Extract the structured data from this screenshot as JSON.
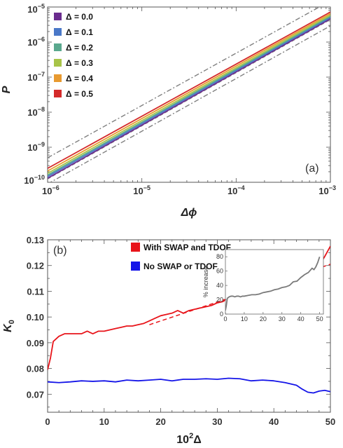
{
  "chart_data": [
    {
      "type": "line",
      "panel_label": "(a)",
      "xlabel": "Δϕ",
      "ylabel": "P",
      "xscale": "log",
      "yscale": "log",
      "xlim": [
        1e-06,
        0.001
      ],
      "ylim": [
        1e-10,
        1e-05
      ],
      "x_ticks": [
        {
          "value": 1e-06,
          "base": "10",
          "exp": "−6"
        },
        {
          "value": 1e-05,
          "base": "10",
          "exp": "−5"
        },
        {
          "value": 0.0001,
          "base": "10",
          "exp": "−4"
        },
        {
          "value": 0.001,
          "base": "10",
          "exp": "−3"
        }
      ],
      "y_ticks": [
        {
          "value": 1e-10,
          "base": "10",
          "exp": "−10"
        },
        {
          "value": 1e-09,
          "base": "10",
          "exp": "−9"
        },
        {
          "value": 1e-08,
          "base": "10",
          "exp": "−8"
        },
        {
          "value": 1e-07,
          "base": "10",
          "exp": "−7"
        },
        {
          "value": 1e-06,
          "base": "10",
          "exp": "−6"
        },
        {
          "value": 1e-05,
          "base": "10",
          "exp": "−5"
        }
      ],
      "legend_position": "top-left",
      "series": [
        {
          "name": "Δ = 0.0",
          "color": "#6a2c8e",
          "x": [
            1e-06,
            0.001
          ],
          "y": [
            1.3e-10,
            4.6e-06
          ]
        },
        {
          "name": "Δ = 0.1",
          "color": "#4a78c8",
          "x": [
            1e-06,
            0.001
          ],
          "y": [
            1.45e-10,
            5e-06
          ]
        },
        {
          "name": "Δ = 0.2",
          "color": "#5aa88e",
          "x": [
            1e-06,
            0.001
          ],
          "y": [
            1.6e-10,
            5.4e-06
          ]
        },
        {
          "name": "Δ = 0.3",
          "color": "#a8c448",
          "x": [
            1e-06,
            0.001
          ],
          "y": [
            1.8e-10,
            5.9e-06
          ]
        },
        {
          "name": "Δ = 0.4",
          "color": "#e89a30",
          "x": [
            1e-06,
            0.001
          ],
          "y": [
            2.1e-10,
            6.5e-06
          ]
        },
        {
          "name": "Δ = 0.5",
          "color": "#d42a2a",
          "x": [
            1e-06,
            0.001
          ],
          "y": [
            2.5e-10,
            7.2e-06
          ]
        }
      ],
      "reference_lines": [
        {
          "style": "dash-dot",
          "color": "#808080",
          "x": [
            1e-06,
            0.001
          ],
          "y": [
            5e-10,
            1.5e-05
          ]
        },
        {
          "style": "dash-dot",
          "color": "#808080",
          "x": [
            1e-06,
            0.001
          ],
          "y": [
            9e-11,
            2.9e-06
          ]
        },
        {
          "style": "dashed",
          "color": "#808080",
          "x": [
            1e-06,
            0.001
          ],
          "y": [
            1.25e-10,
            4.4e-06
          ]
        }
      ]
    },
    {
      "type": "line",
      "panel_label": "(b)",
      "xlabel_base": "10",
      "xlabel_exp": "2",
      "xlabel_rest": "Δ",
      "ylabel_base": "K",
      "ylabel_sub": "0",
      "xlim": [
        0,
        50
      ],
      "ylim": [
        0.063,
        0.13
      ],
      "x_ticks": [
        0,
        10,
        20,
        30,
        40,
        50
      ],
      "y_ticks": [
        0.07,
        0.08,
        0.09,
        0.1,
        0.11,
        0.12,
        0.13
      ],
      "y_tick_labels": [
        "0.07",
        "0.08",
        "0.09",
        "0.10",
        "0.11",
        "0.12",
        "0.13"
      ],
      "legend_position": "top-center",
      "series": [
        {
          "name": "With SWAP and TDOF",
          "color": "#e8141a",
          "x": [
            0,
            0.5,
            1,
            2,
            3,
            4,
            5,
            6,
            7,
            8,
            9,
            10,
            11,
            12,
            13,
            14,
            15,
            16,
            17,
            18,
            19,
            20,
            21,
            22,
            23,
            24,
            25,
            26,
            27,
            28,
            29,
            30,
            31,
            32,
            33,
            34,
            35,
            36,
            37,
            38,
            39,
            40,
            41,
            42,
            43,
            44,
            45,
            46,
            47,
            48,
            49,
            50
          ],
          "y": [
            0.0795,
            0.084,
            0.0905,
            0.0925,
            0.0935,
            0.0935,
            0.0935,
            0.0935,
            0.0945,
            0.0935,
            0.0945,
            0.0945,
            0.095,
            0.0955,
            0.096,
            0.0965,
            0.0965,
            0.097,
            0.0975,
            0.0985,
            0.0995,
            0.1005,
            0.101,
            0.1015,
            0.1025,
            0.1015,
            0.1025,
            0.103,
            0.1035,
            0.104,
            0.1045,
            0.1055,
            0.106,
            0.1075,
            0.108,
            0.109,
            0.1105,
            0.1095,
            0.1125,
            0.113,
            0.1125,
            0.114,
            0.1155,
            0.1165,
            0.1155,
            0.1165,
            0.1175,
            0.1195,
            0.1185,
            0.12,
            0.1235,
            0.1275
          ]
        },
        {
          "name": "No SWAP or TDOF",
          "color": "#1414e8",
          "x": [
            0,
            2,
            4,
            6,
            8,
            10,
            12,
            14,
            16,
            18,
            20,
            22,
            24,
            26,
            28,
            30,
            32,
            34,
            36,
            38,
            40,
            42,
            44,
            45,
            46,
            47,
            48,
            49,
            50
          ],
          "y": [
            0.0748,
            0.0745,
            0.0748,
            0.0752,
            0.075,
            0.0752,
            0.0748,
            0.0755,
            0.0752,
            0.0755,
            0.0758,
            0.0752,
            0.0758,
            0.0758,
            0.076,
            0.0758,
            0.0762,
            0.076,
            0.0752,
            0.0755,
            0.0752,
            0.0745,
            0.0735,
            0.072,
            0.0708,
            0.0705,
            0.0712,
            0.0715,
            0.071
          ]
        }
      ],
      "fit_lines": [
        {
          "style": "dashed",
          "color": "#e8141a",
          "x": [
            18,
            50
          ],
          "y": [
            0.097,
            0.1205
          ]
        }
      ],
      "inset": {
        "ylabel": "% increase",
        "xlim": [
          0,
          52
        ],
        "ylim": [
          0,
          90
        ],
        "x_ticks": [
          0,
          10,
          20,
          30,
          40,
          50
        ],
        "y_ticks": [
          0,
          20,
          40,
          60,
          80
        ],
        "series": [
          {
            "color": "#7a7a7a",
            "x": [
              0,
              0.5,
              1,
              2,
              3,
              4,
              5,
              6,
              7,
              8,
              9,
              10,
              12,
              14,
              16,
              18,
              20,
              22,
              24,
              26,
              28,
              30,
              32,
              34,
              36,
              38,
              40,
              42,
              44,
              46,
              47,
              48,
              49,
              50
            ],
            "y": [
              5,
              12,
              22,
              24,
              25,
              25,
              24,
              25,
              25,
              24,
              25,
              25,
              26,
              27,
              27,
              28,
              30,
              31,
              32,
              34,
              35,
              37,
              38,
              40,
              45,
              46,
              51,
              55,
              58,
              64,
              62,
              66,
              72,
              80
            ]
          }
        ]
      }
    }
  ]
}
